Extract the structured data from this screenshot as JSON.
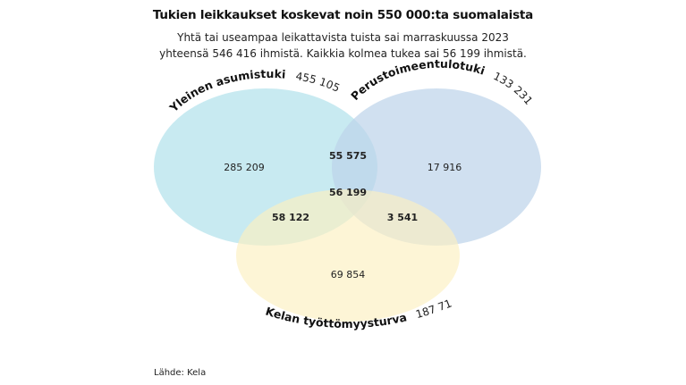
{
  "title": "Tukien leikkaukset koskevat noin 550 000:ta suomalaista",
  "subtitle": {
    "line1": "Yhtä tai useampaa leikattavista tuista sai marraskuussa 2023",
    "line2": "yhteensä 546 416 ihmistä. Kaikkia kolmea tukea sai 56 199 ihmistä."
  },
  "sets": {
    "asumistuki": {
      "name": "Yleinen asumistuki",
      "total": "455 105",
      "color": "#b5e3ec"
    },
    "toimeentulotuki": {
      "name": "Perustoimeentulotuki",
      "total": "133 231",
      "color": "#bcd3ea"
    },
    "tyottomyysturva": {
      "name": "Kelan työttömyysturva",
      "total": "187 716",
      "color": "#fcefc0"
    }
  },
  "regions": {
    "asumistuki_only": "285 209",
    "toimeentulotuki_only": "17 916",
    "tyottomyysturva_only": "69 854",
    "asumistuki_toimeentulotuki": "55 575",
    "asumistuki_tyottomyysturva": "58 122",
    "toimeentulotuki_tyottomyysturva": "3 541",
    "all_three": "56 199"
  },
  "source": "Lähde: Kela"
}
